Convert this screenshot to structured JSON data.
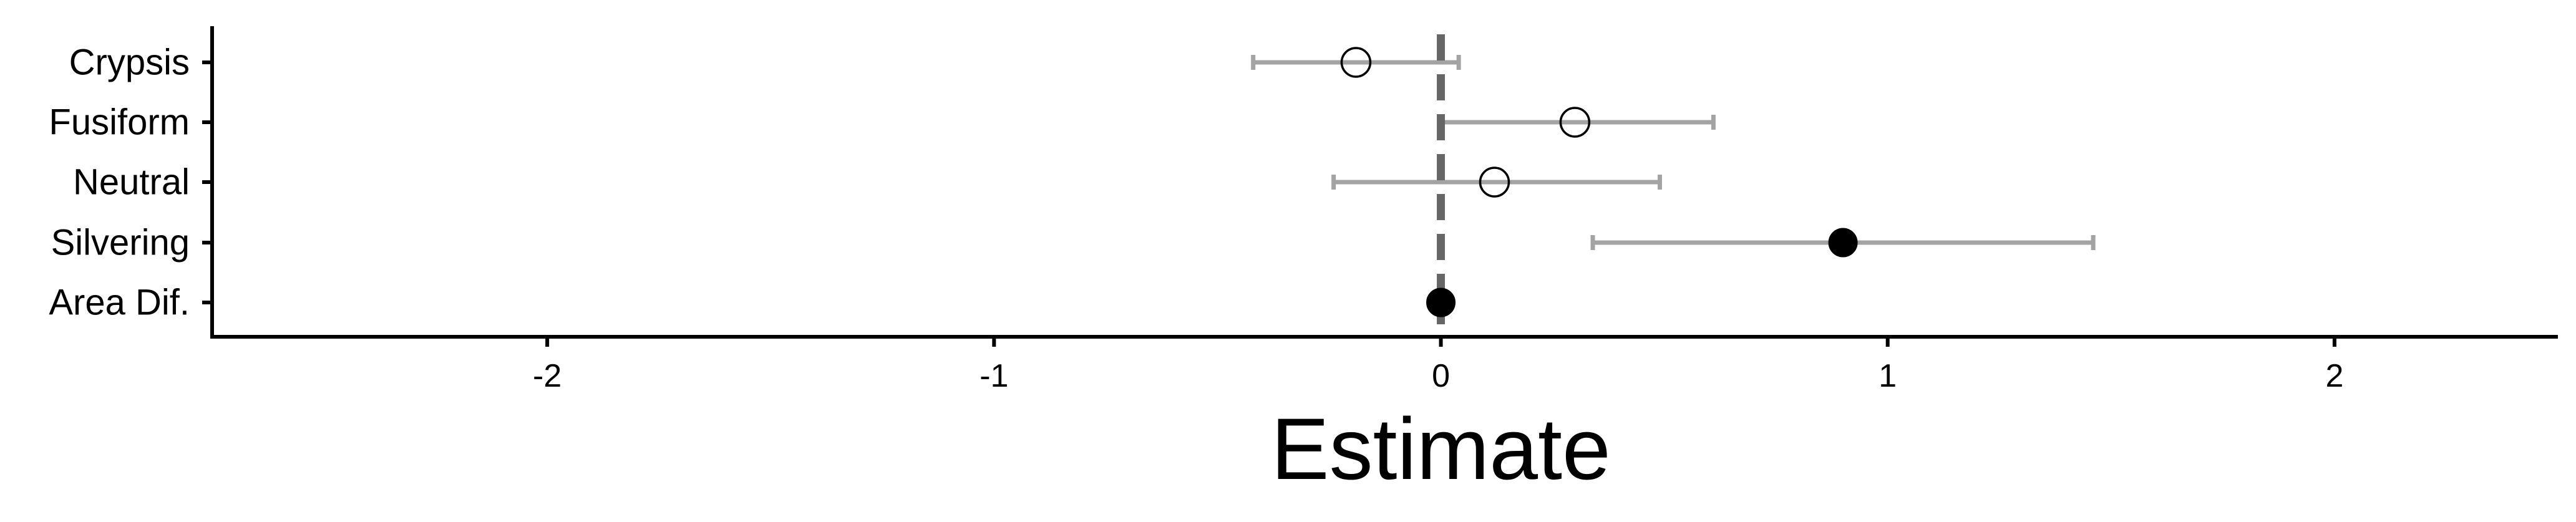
{
  "chart_data": {
    "type": "scatter",
    "title": "",
    "xlabel": "Estimate",
    "ylabel": "",
    "xlim": [
      -2.75,
      2.5
    ],
    "x_ticks": [
      -2,
      -1,
      0,
      1,
      2
    ],
    "categories": [
      "Crypsis",
      "Fusiform",
      "Neutral",
      "Silvering",
      "Area Dif."
    ],
    "points": [
      {
        "label": "Crypsis",
        "estimate": -0.19,
        "lower": -0.42,
        "upper": 0.04,
        "filled": false
      },
      {
        "label": "Fusiform",
        "estimate": 0.3,
        "lower": 0.0,
        "upper": 0.61,
        "filled": false
      },
      {
        "label": "Neutral",
        "estimate": 0.12,
        "lower": -0.24,
        "upper": 0.49,
        "filled": false
      },
      {
        "label": "Silvering",
        "estimate": 0.9,
        "lower": 0.34,
        "upper": 1.46,
        "filled": true
      },
      {
        "label": "Area Dif.",
        "estimate": 0.0,
        "lower": 0.0,
        "upper": 0.0,
        "filled": true
      }
    ],
    "reference_line_x": 0,
    "grid": false,
    "legend": "none",
    "colors": {
      "errorbar": "#a3a3a3",
      "reference_line": "#666666",
      "point_fill": "#000000",
      "point_stroke": "#000000",
      "axis": "#000000"
    }
  }
}
